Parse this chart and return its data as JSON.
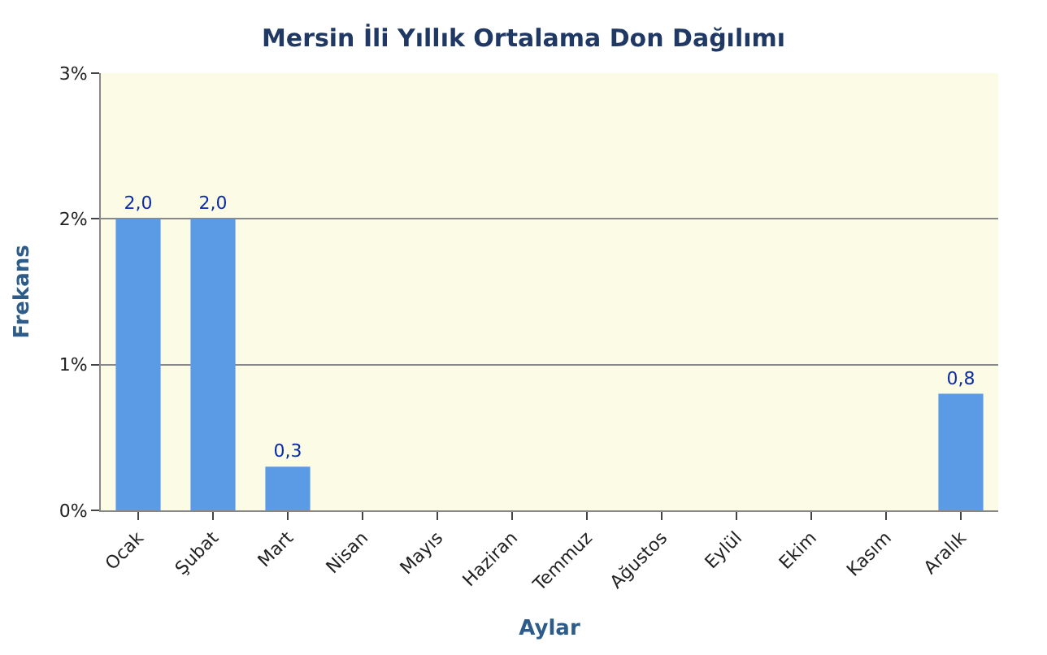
{
  "chart_data": {
    "type": "bar",
    "title": "Mersin İli Yıllık Ortalama Don Dağılımı",
    "xlabel": "Aylar",
    "ylabel": "Frekans",
    "categories": [
      "Ocak",
      "Şubat",
      "Mart",
      "Nisan",
      "Mayıs",
      "Haziran",
      "Temmuz",
      "Ağustos",
      "Eylül",
      "Ekim",
      "Kasım",
      "Aralık"
    ],
    "values": [
      2.0,
      2.0,
      0.3,
      0,
      0,
      0,
      0,
      0,
      0,
      0,
      0,
      0.8
    ],
    "value_labels": [
      "2,0",
      "2,0",
      "0,3",
      null,
      null,
      null,
      null,
      null,
      null,
      null,
      null,
      "0,8"
    ],
    "color": "#5b9be6",
    "ylim": [
      0,
      3
    ],
    "yticks": [
      {
        "value": 0,
        "label": "0%"
      },
      {
        "value": 1,
        "label": "1%"
      },
      {
        "value": 2,
        "label": "2%"
      },
      {
        "value": 3,
        "label": "3%"
      }
    ],
    "grid": "y"
  }
}
